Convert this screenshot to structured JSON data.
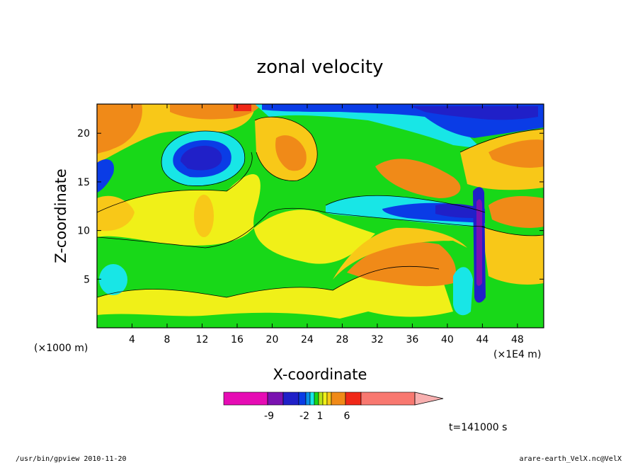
{
  "chart_data": {
    "type": "heatmap",
    "title": "zonal velocity",
    "xlabel": "X-coordinate",
    "ylabel": "Z-coordinate",
    "x_unit_label": "(×1000 m)",
    "x_unit_label_right": "(×1E4 m)",
    "xlim": [
      0,
      51
    ],
    "ylim": [
      0,
      23
    ],
    "x_ticks": [
      4,
      8,
      12,
      16,
      20,
      24,
      28,
      32,
      36,
      40,
      44,
      48
    ],
    "y_ticks": [
      5,
      10,
      15,
      20
    ],
    "x_tick_labels": [
      "4",
      "8",
      "12",
      "16",
      "20",
      "24",
      "28",
      "32",
      "36",
      "40",
      "44",
      "48"
    ],
    "y_tick_labels": [
      "5",
      "10",
      "15",
      "20"
    ],
    "colorbar": {
      "labels": [
        {
          "text": "-9",
          "value": -9
        },
        {
          "text": "-2",
          "value": -2
        },
        {
          "text": "1",
          "value": 1
        },
        {
          "text": "6",
          "value": 6
        }
      ],
      "colors": [
        "#e60cb4",
        "#7a12b0",
        "#2020c8",
        "#0a3ce6",
        "#0a90e6",
        "#18e6e6",
        "#18d818",
        "#b8e018",
        "#f0f018",
        "#f8c818",
        "#f08a18",
        "#f02818",
        "#f87870"
      ]
    },
    "time_label": "t=141000 s",
    "regions": [
      {
        "name": "background",
        "color": "#18d818"
      },
      {
        "name": "low-level-positive",
        "color": "#f0f018"
      },
      {
        "name": "upper-left-negative-core",
        "color": "#0a3ce6"
      },
      {
        "name": "upper-right-negative-core",
        "color": "#0a3ce6"
      },
      {
        "name": "upper-right-positive",
        "color": "#f08a18"
      },
      {
        "name": "mid-right-negative",
        "color": "#18e6e6"
      }
    ]
  },
  "footer": {
    "left": "/usr/bin/gpview   2010-11-20",
    "right": "arare-earth_VelX.nc@VelX"
  }
}
